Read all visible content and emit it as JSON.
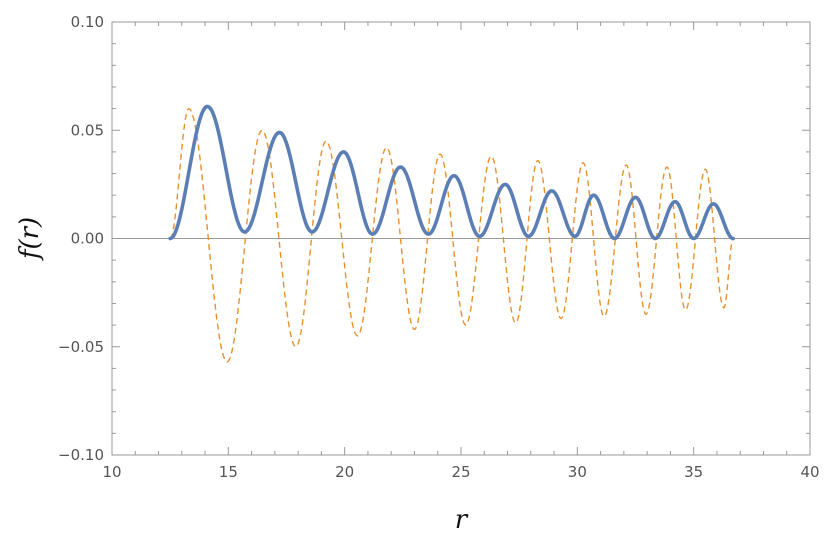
{
  "chart_data": {
    "type": "line",
    "title": "",
    "xlabel": "r",
    "ylabel": "f(r)",
    "xlim": [
      10,
      40
    ],
    "ylim": [
      -0.1,
      0.1
    ],
    "x_ticks": [
      10,
      15,
      20,
      25,
      30,
      35,
      40
    ],
    "x_tick_labels": [
      "10",
      "15",
      "20",
      "25",
      "30",
      "35",
      "40"
    ],
    "y_ticks": [
      -0.1,
      -0.05,
      0.0,
      0.05,
      0.1
    ],
    "y_tick_labels": [
      "−0.10",
      "−0.05",
      "0.00",
      "0.05",
      "0.10"
    ],
    "frame": true,
    "grid": false,
    "zero_line": true,
    "series": [
      {
        "style": "solid",
        "color": "#5b7fb5",
        "curve": "positive",
        "x_range": [
          12.5,
          36.7
        ],
        "extrema": [
          [
            12.5,
            0.0
          ],
          [
            14.1,
            0.061
          ],
          [
            15.7,
            0.003
          ],
          [
            17.2,
            0.049
          ],
          [
            18.6,
            0.003
          ],
          [
            19.95,
            0.04
          ],
          [
            21.2,
            0.002
          ],
          [
            22.4,
            0.033
          ],
          [
            23.6,
            0.002
          ],
          [
            24.7,
            0.029
          ],
          [
            25.8,
            0.001
          ],
          [
            26.9,
            0.025
          ],
          [
            27.9,
            0.001
          ],
          [
            28.9,
            0.022
          ],
          [
            29.9,
            0.001
          ],
          [
            30.7,
            0.02
          ],
          [
            31.6,
            0.0
          ],
          [
            32.5,
            0.019
          ],
          [
            33.35,
            0.0
          ],
          [
            34.2,
            0.017
          ],
          [
            35.0,
            0.0
          ],
          [
            35.85,
            0.016
          ],
          [
            36.7,
            0.0
          ]
        ]
      },
      {
        "style": "dashed",
        "color": "#e8912c",
        "curve": "oscillating",
        "x_range": [
          12.5,
          36.7
        ],
        "extrema": [
          [
            12.5,
            0.0
          ],
          [
            13.3,
            0.06
          ],
          [
            14.95,
            -0.057
          ],
          [
            16.45,
            0.05
          ],
          [
            17.9,
            -0.05
          ],
          [
            19.2,
            0.045
          ],
          [
            20.55,
            -0.045
          ],
          [
            21.8,
            0.042
          ],
          [
            23.0,
            -0.042
          ],
          [
            24.1,
            0.039
          ],
          [
            25.2,
            -0.04
          ],
          [
            26.3,
            0.038
          ],
          [
            27.35,
            -0.039
          ],
          [
            28.3,
            0.036
          ],
          [
            29.3,
            -0.037
          ],
          [
            30.25,
            0.035
          ],
          [
            31.15,
            -0.036
          ],
          [
            32.1,
            0.034
          ],
          [
            32.95,
            -0.035
          ],
          [
            33.85,
            0.033
          ],
          [
            34.65,
            -0.033
          ],
          [
            35.5,
            0.032
          ],
          [
            36.3,
            -0.032
          ],
          [
            36.7,
            0.0
          ]
        ]
      }
    ]
  }
}
